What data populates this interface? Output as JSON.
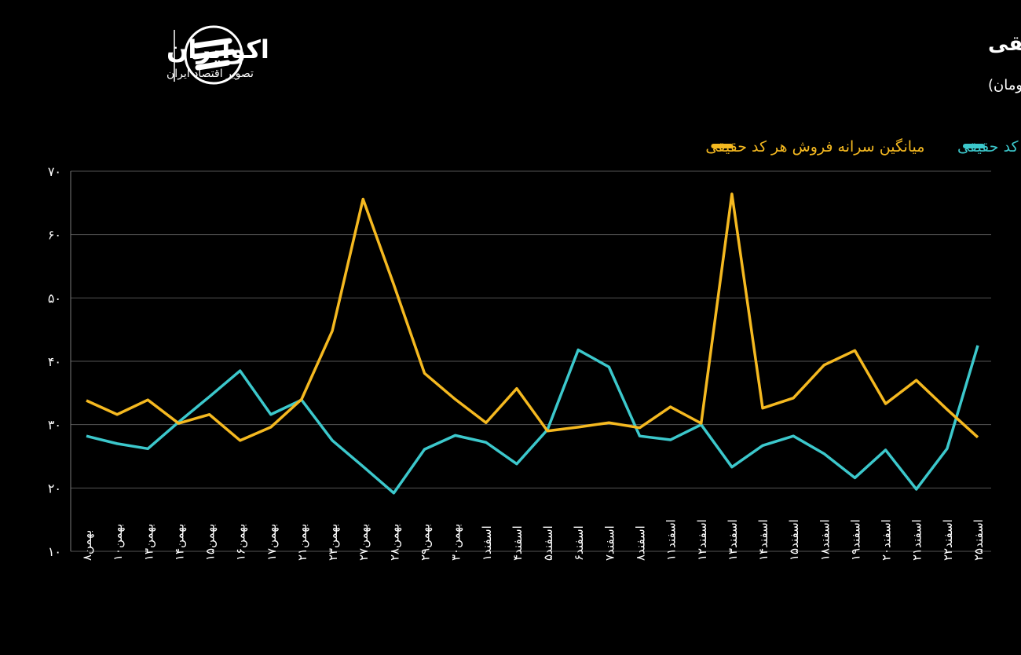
{
  "brand": {
    "name": "اکوایران",
    "tagline": "تصویر اقتصاد ایران"
  },
  "chart_data": {
    "type": "line",
    "title": "روند میانگین روزانه سرانه خرید و فروش هر کد حقیقی",
    "subtitle": "(واحد: میلیون تومان)",
    "categories": [
      "بهمن۸",
      "بهمن۱۰",
      "بهمن۱۳",
      "بهمن۱۴",
      "بهمن۱۵",
      "بهمن۱۶",
      "بهمن۱۷",
      "بهمن۲۱",
      "بهمن۲۳",
      "بهمن۲۷",
      "بهمن۲۸",
      "بهمن۲۹",
      "بهمن۳۰",
      "اسفند۱",
      "اسفند۴",
      "اسفند۵",
      "اسفند۶",
      "اسفند۷",
      "اسفند۸",
      "اسفند۱۱",
      "اسفند۱۲",
      "اسفند۱۳",
      "اسفند۱۴",
      "اسفند۱۵",
      "اسفند۱۸",
      "اسفند۱۹",
      "اسفند۲۰",
      "اسفند۲۱",
      "اسفند۲۲",
      "اسفند۲۵"
    ],
    "series": [
      {
        "name": "میانگین سرانه خرید هر کد حقیقی",
        "color": "#3cc8cc",
        "values": [
          28.2,
          27.0,
          26.2,
          30.4,
          34.4,
          38.5,
          31.6,
          33.9,
          27.5,
          23.4,
          19.2,
          26.1,
          28.3,
          27.2,
          23.8,
          29.2,
          41.8,
          39.1,
          28.2,
          27.6,
          30.0,
          23.3,
          26.7,
          28.2,
          25.4,
          21.6,
          26.0,
          19.8,
          26.2,
          42.5
        ]
      },
      {
        "name": "میانگین سرانه فروش هر کد حقیقی",
        "color": "#f5b920",
        "values": [
          33.8,
          31.6,
          33.9,
          30.2,
          31.6,
          27.5,
          29.6,
          34.0,
          44.8,
          65.6,
          52.1,
          38.1,
          34.0,
          30.3,
          35.7,
          29.0,
          29.6,
          30.3,
          29.5,
          32.8,
          30.2,
          66.4,
          32.6,
          34.2,
          39.4,
          41.7,
          33.3,
          37.0,
          32.4,
          28.0
        ]
      }
    ],
    "ylim": [
      10,
      70
    ],
    "yticks": [
      {
        "value": 10,
        "label": "۱۰"
      },
      {
        "value": 20,
        "label": "۲۰"
      },
      {
        "value": 30,
        "label": "۳۰"
      },
      {
        "value": 40,
        "label": "۴۰"
      },
      {
        "value": 50,
        "label": "۵۰"
      },
      {
        "value": 60,
        "label": "۶۰"
      },
      {
        "value": 70,
        "label": "۷۰"
      }
    ],
    "grid": true
  }
}
